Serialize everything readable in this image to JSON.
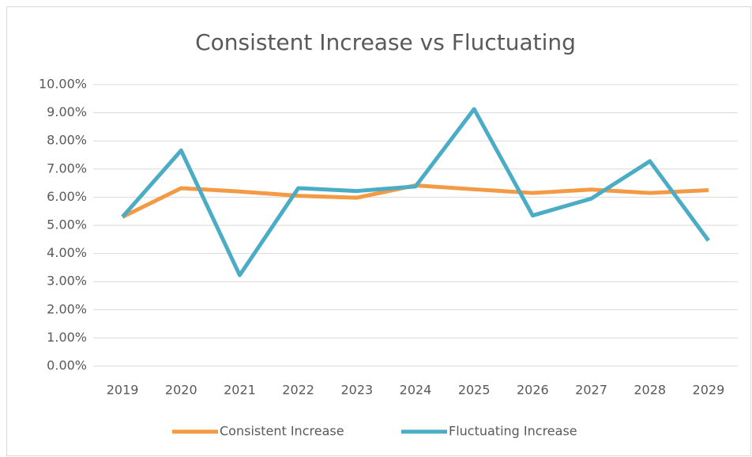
{
  "chart_data": {
    "type": "line",
    "title": "Consistent Increase vs Fluctuating",
    "categories": [
      "2019",
      "2020",
      "2021",
      "2022",
      "2023",
      "2024",
      "2025",
      "2026",
      "2027",
      "2028",
      "2029"
    ],
    "series": [
      {
        "name": "Consistent Increase",
        "color": "#f39a45",
        "values": [
          5.3,
          6.32,
          6.2,
          6.05,
          5.98,
          6.42,
          6.28,
          6.15,
          6.27,
          6.15,
          6.25
        ]
      },
      {
        "name": "Fluctuating Increase",
        "color": "#4bacc6",
        "values": [
          5.3,
          7.66,
          3.23,
          6.32,
          6.22,
          6.38,
          9.13,
          5.35,
          5.95,
          7.28,
          4.46
        ]
      }
    ],
    "ylim": [
      0,
      10
    ],
    "yticks": [
      {
        "value": 0,
        "label": "0.00%"
      },
      {
        "value": 1,
        "label": "1.00%"
      },
      {
        "value": 2,
        "label": "2.00%"
      },
      {
        "value": 3,
        "label": "3.00%"
      },
      {
        "value": 4,
        "label": "4.00%"
      },
      {
        "value": 5,
        "label": "5.00%"
      },
      {
        "value": 6,
        "label": "6.00%"
      },
      {
        "value": 7,
        "label": "7.00%"
      },
      {
        "value": 8,
        "label": "8.00%"
      },
      {
        "value": 9,
        "label": "9.00%"
      },
      {
        "value": 10,
        "label": "10.00%"
      }
    ],
    "grid": true,
    "legend": "bottom"
  }
}
